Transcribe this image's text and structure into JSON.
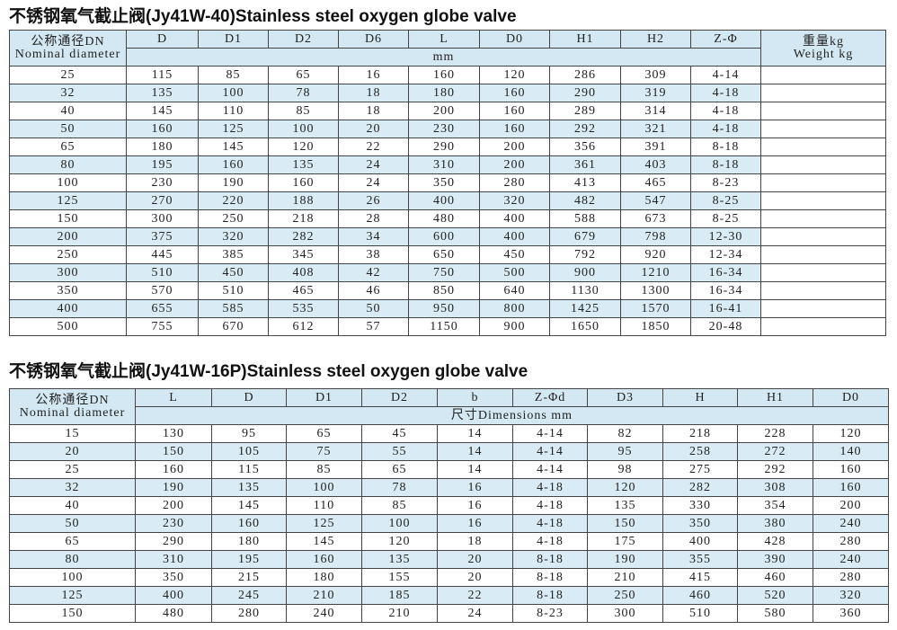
{
  "table1": {
    "title": "不锈钢氧气截止阀(Jy41W-40)Stainless steel oxygen globe valve",
    "dn_cn": "公称通径DN",
    "dn_en": "Nominal diameter",
    "columns": [
      "D",
      "D1",
      "D2",
      "D6",
      "L",
      "D0",
      "H1",
      "H2",
      "Z-Φ"
    ],
    "unit": "mm",
    "weight_cn": "重量kg",
    "weight_en": "Weight kg",
    "rows": [
      [
        25,
        115,
        85,
        65,
        16,
        160,
        120,
        286,
        309,
        "4-14"
      ],
      [
        32,
        135,
        100,
        78,
        18,
        180,
        160,
        290,
        319,
        "4-18"
      ],
      [
        40,
        145,
        110,
        85,
        18,
        200,
        160,
        289,
        314,
        "4-18"
      ],
      [
        50,
        160,
        125,
        100,
        20,
        230,
        160,
        292,
        321,
        "4-18"
      ],
      [
        65,
        180,
        145,
        120,
        22,
        290,
        200,
        356,
        391,
        "8-18"
      ],
      [
        80,
        195,
        160,
        135,
        24,
        310,
        200,
        361,
        403,
        "8-18"
      ],
      [
        100,
        230,
        190,
        160,
        24,
        350,
        280,
        413,
        465,
        "8-23"
      ],
      [
        125,
        270,
        220,
        188,
        26,
        400,
        320,
        482,
        547,
        "8-25"
      ],
      [
        150,
        300,
        250,
        218,
        28,
        480,
        400,
        588,
        673,
        "8-25"
      ],
      [
        200,
        375,
        320,
        282,
        34,
        600,
        400,
        679,
        798,
        "12-30"
      ],
      [
        250,
        445,
        385,
        345,
        38,
        650,
        450,
        792,
        920,
        "12-34"
      ],
      [
        300,
        510,
        450,
        408,
        42,
        750,
        500,
        900,
        1210,
        "16-34"
      ],
      [
        350,
        570,
        510,
        465,
        46,
        850,
        640,
        1130,
        1300,
        "16-34"
      ],
      [
        400,
        655,
        585,
        535,
        50,
        950,
        800,
        1425,
        1570,
        "16-41"
      ],
      [
        500,
        755,
        670,
        612,
        57,
        1150,
        900,
        1650,
        1850,
        "20-48"
      ]
    ]
  },
  "table2": {
    "title": "不锈钢氧气截止阀(Jy41W-16P)Stainless steel oxygen globe valve",
    "dn_cn": "公称通径DN",
    "dn_en": "Nominal diameter",
    "columns": [
      "L",
      "D",
      "D1",
      "D2",
      "b",
      "Z-Φd",
      "D3",
      "H",
      "H1",
      "D0"
    ],
    "unit": "尺寸Dimensions mm",
    "rows": [
      [
        15,
        130,
        95,
        65,
        45,
        14,
        "4-14",
        82,
        218,
        228,
        120
      ],
      [
        20,
        150,
        105,
        75,
        55,
        14,
        "4-14",
        95,
        258,
        272,
        140
      ],
      [
        25,
        160,
        115,
        85,
        65,
        14,
        "4-14",
        98,
        275,
        292,
        160
      ],
      [
        32,
        190,
        135,
        100,
        78,
        16,
        "4-18",
        120,
        282,
        308,
        160
      ],
      [
        40,
        200,
        145,
        110,
        85,
        16,
        "4-18",
        135,
        330,
        354,
        200
      ],
      [
        50,
        230,
        160,
        125,
        100,
        16,
        "4-18",
        150,
        350,
        380,
        240
      ],
      [
        65,
        290,
        180,
        145,
        120,
        18,
        "4-18",
        175,
        400,
        428,
        280
      ],
      [
        80,
        310,
        195,
        160,
        135,
        20,
        "8-18",
        190,
        355,
        390,
        240
      ],
      [
        100,
        350,
        215,
        180,
        155,
        20,
        "8-18",
        210,
        415,
        460,
        280
      ],
      [
        125,
        400,
        245,
        210,
        185,
        22,
        "8-18",
        250,
        460,
        520,
        320
      ],
      [
        150,
        480,
        280,
        240,
        210,
        24,
        "8-23",
        300,
        510,
        580,
        360
      ]
    ]
  }
}
